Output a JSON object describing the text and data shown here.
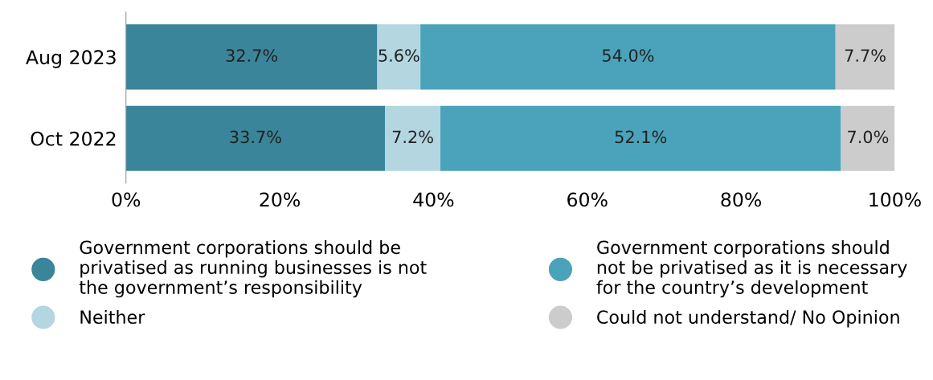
{
  "chart_data": {
    "type": "bar",
    "orientation": "horizontal",
    "stacked": true,
    "categories": [
      "Aug 2023",
      "Oct 2022"
    ],
    "series": [
      {
        "name": "Government corporations should be\nprivatised as running businesses is not\nthe government’s responsibility",
        "color": "#3a8599",
        "values": [
          32.7,
          33.7
        ],
        "value_labels": [
          "32.7%",
          "33.7%"
        ]
      },
      {
        "name": "Neither",
        "color": "#b3d6e0",
        "values": [
          5.6,
          7.2
        ],
        "value_labels": [
          "5.6%",
          "7.2%"
        ]
      },
      {
        "name": "Government corporations should\nnot be privatised as it is necessary\nfor the country’s development",
        "color": "#4aa3bb",
        "values": [
          54.0,
          52.1
        ],
        "value_labels": [
          "54.0%",
          "52.1%"
        ]
      },
      {
        "name": "Could not understand/ No Opinion",
        "color": "#cccccc",
        "values": [
          7.7,
          7.0
        ],
        "value_labels": [
          "7.7%",
          "7.0%"
        ]
      }
    ],
    "xlim": [
      0,
      100
    ],
    "xticks": [
      {
        "value": 0,
        "label": "0%"
      },
      {
        "value": 20,
        "label": "20%"
      },
      {
        "value": 40,
        "label": "40%"
      },
      {
        "value": 60,
        "label": "60%"
      },
      {
        "value": 80,
        "label": "80%"
      },
      {
        "value": 100,
        "label": "100%"
      }
    ],
    "grid": false,
    "legend": "bottom",
    "marker": "circle"
  }
}
